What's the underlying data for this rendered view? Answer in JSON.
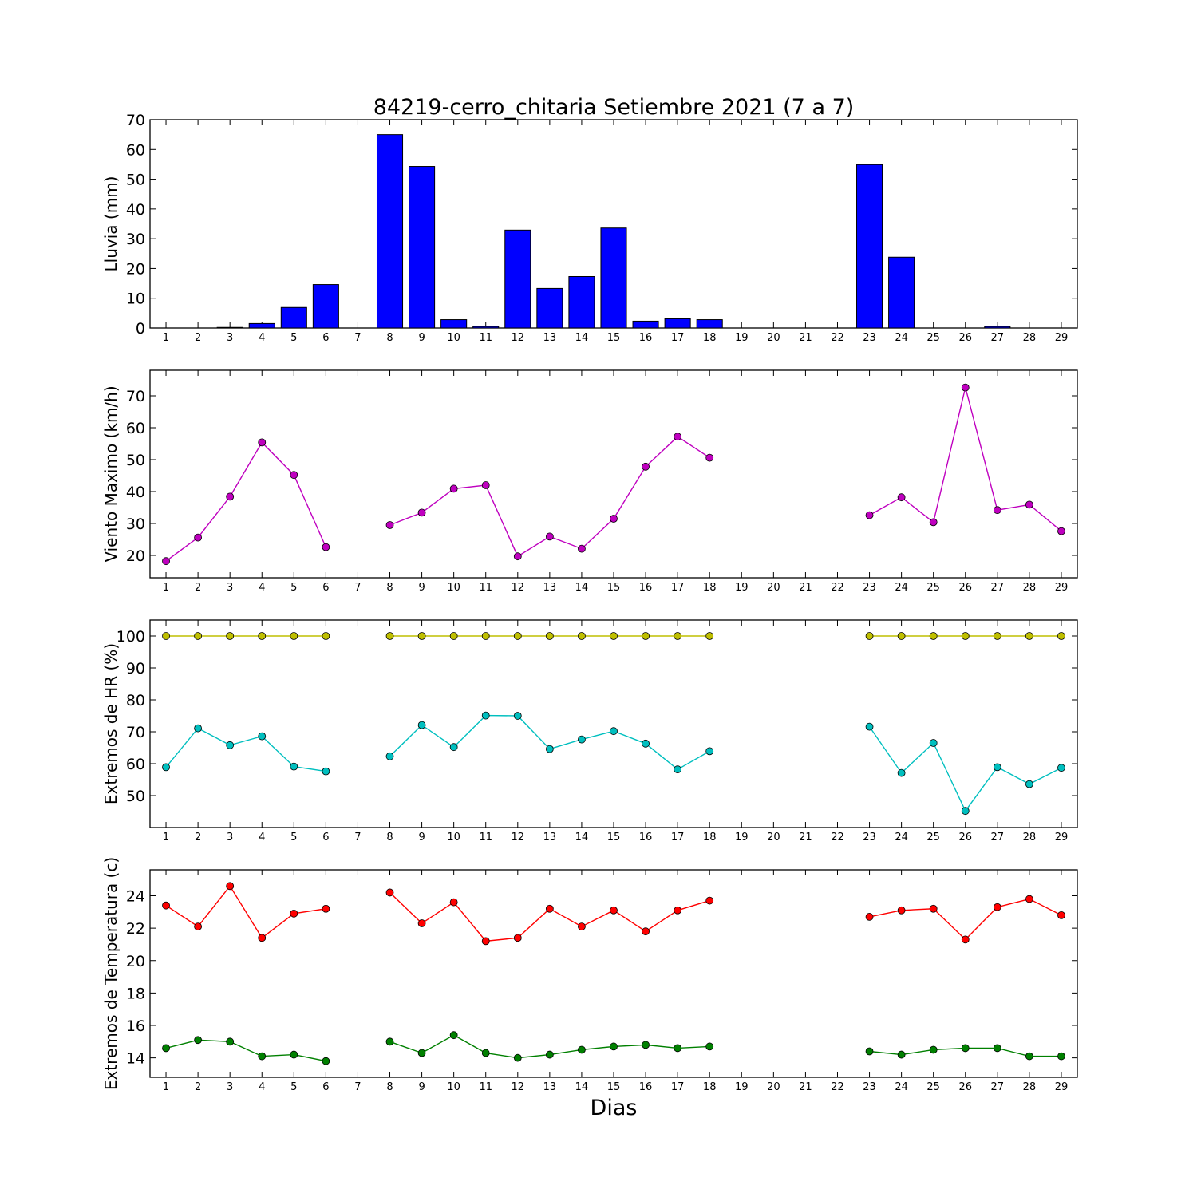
{
  "figure": {
    "title": "84219-cerro_chitaria Setiembre 2021  (7 a 7)",
    "xlabel": "Dias"
  },
  "chart_data": [
    {
      "type": "bar",
      "ylabel": "Lluvia (mm)",
      "ylim": [
        0,
        70
      ],
      "yticks": [
        0,
        10,
        20,
        30,
        40,
        50,
        60,
        70
      ],
      "categories": [
        1,
        2,
        3,
        4,
        5,
        6,
        7,
        8,
        9,
        10,
        11,
        12,
        13,
        14,
        15,
        16,
        17,
        18,
        19,
        20,
        21,
        22,
        23,
        24,
        25,
        26,
        27,
        28,
        29
      ],
      "values": [
        0,
        0,
        0.2,
        1.5,
        6.9,
        14.6,
        0,
        65,
        54.3,
        2.8,
        0.5,
        32.9,
        13.3,
        17.3,
        33.6,
        2.3,
        3.1,
        2.8,
        0,
        0,
        0,
        0,
        54.9,
        23.8,
        0,
        0,
        0.5,
        0,
        0
      ],
      "color": "#0000ff",
      "grid": false
    },
    {
      "type": "line",
      "ylabel": "Viento Maximo (km/h)",
      "ylim": [
        13,
        78
      ],
      "yticks": [
        20,
        30,
        40,
        50,
        60,
        70
      ],
      "x": [
        1,
        2,
        3,
        4,
        5,
        6,
        7,
        8,
        9,
        10,
        11,
        12,
        13,
        14,
        15,
        16,
        17,
        18,
        19,
        20,
        21,
        22,
        23,
        24,
        25,
        26,
        27,
        28,
        29
      ],
      "series": [
        {
          "color": "#bf00bf",
          "values": [
            18.2,
            25.6,
            38.4,
            55.4,
            45.2,
            22.6,
            null,
            29.5,
            33.4,
            40.9,
            42,
            19.7,
            25.9,
            22.1,
            31.5,
            47.8,
            57.2,
            50.6,
            null,
            null,
            null,
            null,
            32.6,
            38.2,
            30.4,
            72.6,
            34.2,
            35.9,
            27.6
          ]
        }
      ],
      "grid": false
    },
    {
      "type": "line",
      "ylabel": "Extremos de HR (%)",
      "ylim": [
        40,
        105
      ],
      "yticks": [
        50,
        60,
        70,
        80,
        90,
        100
      ],
      "x": [
        1,
        2,
        3,
        4,
        5,
        6,
        7,
        8,
        9,
        10,
        11,
        12,
        13,
        14,
        15,
        16,
        17,
        18,
        19,
        20,
        21,
        22,
        23,
        24,
        25,
        26,
        27,
        28,
        29
      ],
      "series": [
        {
          "color": "#bfbf00",
          "values": [
            100,
            100,
            100,
            100,
            100,
            100,
            null,
            100,
            100,
            100,
            100,
            100,
            100,
            100,
            100,
            100,
            100,
            100,
            null,
            null,
            null,
            null,
            100,
            100,
            100,
            100,
            100,
            100,
            100
          ]
        },
        {
          "color": "#00bfbf",
          "values": [
            58.9,
            71.1,
            65.8,
            68.6,
            59.1,
            57.6,
            null,
            62.3,
            72.1,
            65.2,
            75.1,
            75,
            64.6,
            67.6,
            70.2,
            66.3,
            58.2,
            63.9,
            null,
            null,
            null,
            null,
            71.6,
            57.1,
            66.5,
            45.2,
            58.9,
            53.6,
            58.7
          ]
        }
      ],
      "grid": false
    },
    {
      "type": "line",
      "ylabel": "Extremos de Temperatura (c)",
      "ylim": [
        12.8,
        25.6
      ],
      "yticks": [
        14,
        16,
        18,
        20,
        22,
        24
      ],
      "x": [
        1,
        2,
        3,
        4,
        5,
        6,
        7,
        8,
        9,
        10,
        11,
        12,
        13,
        14,
        15,
        16,
        17,
        18,
        19,
        20,
        21,
        22,
        23,
        24,
        25,
        26,
        27,
        28,
        29
      ],
      "series": [
        {
          "color": "#ff0000",
          "values": [
            23.4,
            22.1,
            24.6,
            21.4,
            22.9,
            23.2,
            null,
            24.2,
            22.3,
            23.6,
            21.2,
            21.4,
            23.2,
            22.1,
            23.1,
            21.8,
            23.1,
            23.7,
            null,
            null,
            null,
            null,
            22.7,
            23.1,
            23.2,
            21.3,
            23.3,
            23.8,
            22.8
          ]
        },
        {
          "color": "#008000",
          "values": [
            14.6,
            15.1,
            15,
            14.1,
            14.2,
            13.8,
            null,
            15,
            14.3,
            15.4,
            14.3,
            14,
            14.2,
            14.5,
            14.7,
            14.8,
            14.6,
            14.7,
            null,
            null,
            null,
            null,
            14.4,
            14.2,
            14.5,
            14.6,
            14.6,
            14.1,
            14.1
          ]
        }
      ],
      "grid": false
    }
  ]
}
